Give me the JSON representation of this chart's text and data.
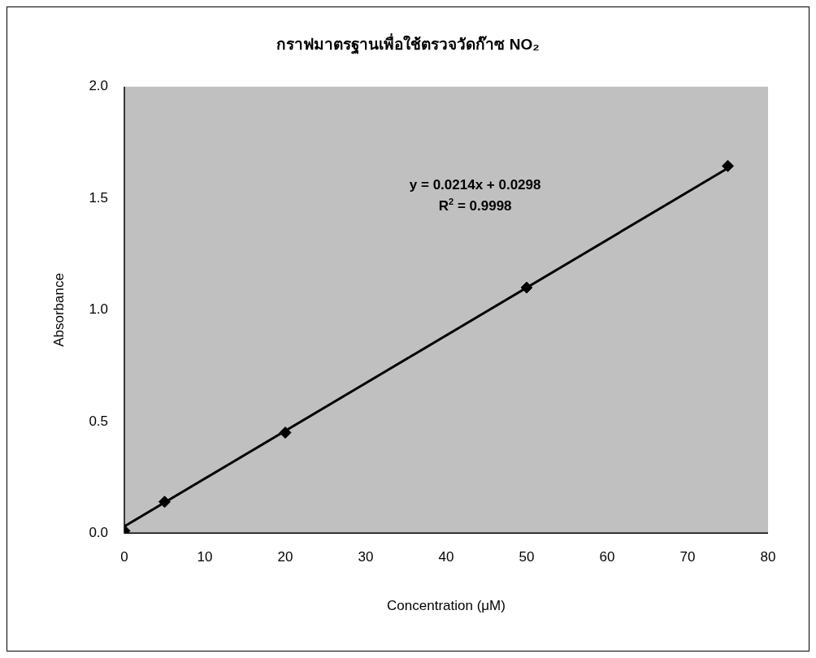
{
  "chart_data": {
    "type": "scatter",
    "title": "กราฟมาตรฐานเพื่อใช้ตรวจวัดก๊าซ NO₂",
    "xlabel": "Concentration (μM)",
    "ylabel": "Absorbance",
    "x": [
      0,
      5,
      20,
      50,
      75
    ],
    "series": [
      {
        "color": "#000000",
        "values": [
          0.01,
          0.14,
          0.45,
          1.1,
          1.645
        ],
        "marker": "diamond"
      },
      {
        "type": "line",
        "color": "#000000",
        "x": [
          0,
          75
        ],
        "values": [
          0.03,
          1.635
        ],
        "marker": "none"
      }
    ],
    "annotations": [
      "y = 0.0214x + 0.0298",
      "R$^{2}$ = 0.9998"
    ],
    "xlim": [
      0,
      80
    ],
    "xticks": [
      0,
      10,
      20,
      30,
      40,
      50,
      60,
      70,
      80
    ],
    "ylim": [
      0,
      2
    ],
    "yticks": [
      {
        "value": 0,
        "label": "0.0"
      },
      {
        "value": 0.5,
        "label": "0.5"
      },
      {
        "value": 1,
        "label": "1.0"
      },
      {
        "value": 1.5,
        "label": "1.5"
      },
      {
        "value": 2,
        "label": "2.0"
      }
    ],
    "grid": false,
    "legend": false
  }
}
